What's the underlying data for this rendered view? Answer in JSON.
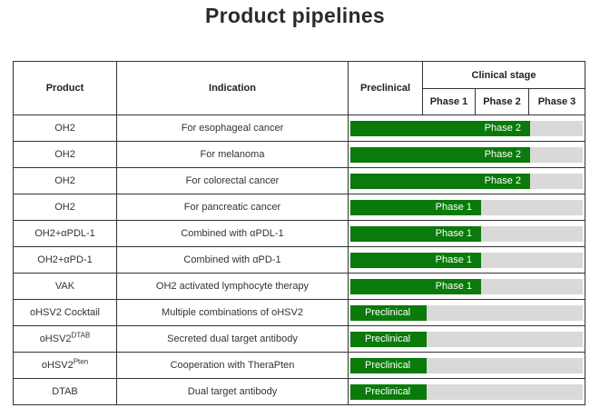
{
  "title": "Product pipelines",
  "headers": {
    "product": "Product",
    "indication": "Indication",
    "preclinical": "Preclinical",
    "clinical_stage": "Clinical stage",
    "phase1": "Phase 1",
    "phase2": "Phase 2",
    "phase3": "Phase 3"
  },
  "colors": {
    "progress": "#0a7a0a",
    "track": "#d9d9d9"
  },
  "rows": [
    {
      "product": "OH2",
      "indication": "For esophageal cancer",
      "stage": "Phase 2",
      "level": 3
    },
    {
      "product": "OH2",
      "indication": "For melanoma",
      "stage": "Phase 2",
      "level": 3
    },
    {
      "product": "OH2",
      "indication": "For colorectal cancer",
      "stage": "Phase 2",
      "level": 3
    },
    {
      "product": "OH2",
      "indication": "For pancreatic cancer",
      "stage": "Phase 1",
      "level": 2
    },
    {
      "product": "OH2+αPDL-1",
      "indication": "Combined with αPDL-1",
      "stage": "Phase 1",
      "level": 2
    },
    {
      "product": "OH2+αPD-1",
      "indication": "Combined with αPD-1",
      "stage": "Phase 1",
      "level": 2
    },
    {
      "product": "VAK",
      "indication": "OH2 activated lymphocyte therapy",
      "stage": "Phase 1",
      "level": 2
    },
    {
      "product": "oHSV2 Cocktail",
      "indication": "Multiple combinations of oHSV2",
      "stage": "Preclinical",
      "level": 1
    },
    {
      "product": "oHSV2",
      "product_sup": "DTAB",
      "indication": "Secreted dual target antibody",
      "stage": "Preclinical",
      "level": 1
    },
    {
      "product": "oHSV2",
      "product_sup": "Pten",
      "indication": "Cooperation with TheraPten",
      "stage": "Preclinical",
      "level": 1
    },
    {
      "product": "DTAB",
      "indication": "Dual target antibody",
      "stage": "Preclinical",
      "level": 1
    }
  ]
}
